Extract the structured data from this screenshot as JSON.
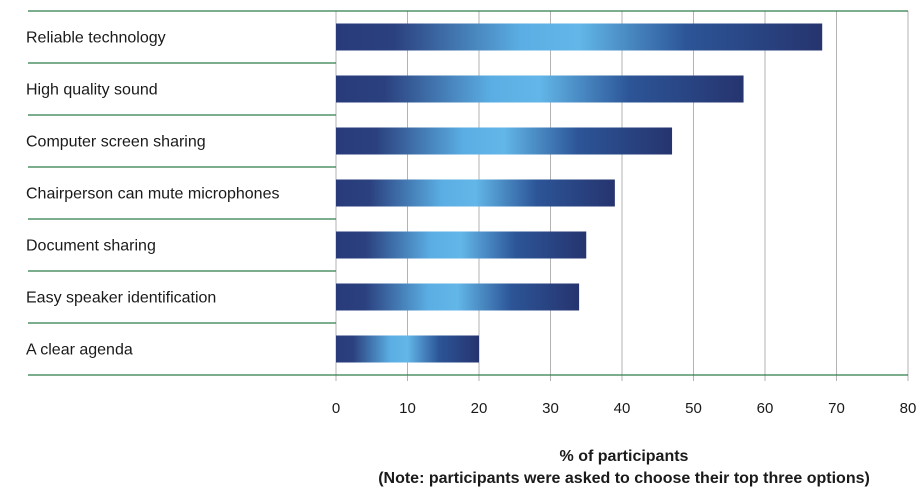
{
  "chart_data": {
    "type": "bar",
    "orientation": "horizontal",
    "categories": [
      "Reliable technology",
      "High quality sound",
      "Computer screen sharing",
      "Chairperson can mute microphones",
      "Document sharing",
      "Easy speaker identification",
      "A clear agenda"
    ],
    "values": [
      68,
      57,
      47,
      39,
      35,
      34,
      20
    ],
    "xlabel": "% of participants",
    "note": "(Note: participants were asked to choose their top three options)",
    "xlim": [
      0,
      80
    ],
    "xticks": [
      0,
      10,
      20,
      30,
      40,
      50,
      60,
      70,
      80
    ],
    "grid": true,
    "legend": "none",
    "colors": {
      "bar_dark": "#283a7a",
      "bar_light": "#62b6e8",
      "separator": "#2e7d4a",
      "grid": "#b3b3b3"
    }
  }
}
